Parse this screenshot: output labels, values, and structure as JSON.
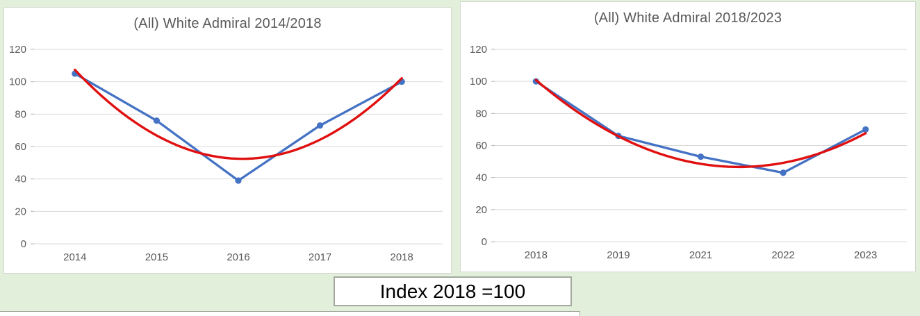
{
  "colors": {
    "background": "#e2efda",
    "panel": "#ffffff",
    "panel_border": "#d3d8cf",
    "gridline": "#d9d9d9",
    "tick": "#bfbfbf",
    "axis_text": "#595959",
    "title_text": "#595959",
    "series_blue": "#4472c4",
    "trendline_red": "#e01010"
  },
  "footnote": {
    "text": "Index 2018 =100"
  },
  "chart_data": [
    {
      "type": "line",
      "title": "(All) White Admiral 2014/2018",
      "categories": [
        "2014",
        "2015",
        "2016",
        "2017",
        "2018"
      ],
      "series": [
        {
          "name": "index",
          "type": "line-markers",
          "color": "#4472c4",
          "values": [
            105,
            76,
            39,
            73,
            100
          ]
        },
        {
          "name": "trendline",
          "type": "polynomial-fit-order2",
          "of": "index",
          "color": "#e01010"
        }
      ],
      "xlabel": "",
      "ylabel": "",
      "ylim": [
        0,
        120
      ],
      "yticks": [
        0,
        20,
        40,
        60,
        80,
        100,
        120
      ],
      "grid": true,
      "legend": "none"
    },
    {
      "type": "line",
      "title": "(All) White Admiral 2018/2023",
      "categories": [
        "2018",
        "2019",
        "2021",
        "2022",
        "2023"
      ],
      "series": [
        {
          "name": "index",
          "type": "line-markers",
          "color": "#4472c4",
          "values": [
            100,
            66,
            53,
            43,
            70
          ]
        },
        {
          "name": "trendline",
          "type": "polynomial-fit-order2",
          "of": "index",
          "color": "#e01010"
        }
      ],
      "xlabel": "",
      "ylabel": "",
      "ylim": [
        0,
        120
      ],
      "yticks": [
        0,
        20,
        40,
        60,
        80,
        100,
        120
      ],
      "grid": true,
      "legend": "none"
    }
  ]
}
